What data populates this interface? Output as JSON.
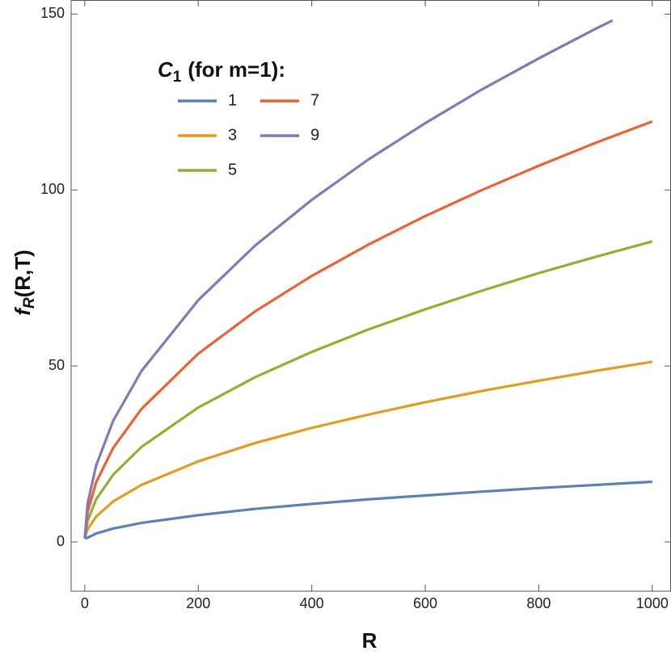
{
  "chart_data": {
    "type": "line",
    "xlabel": "R",
    "ylabel_symbol": "f",
    "ylabel_sub": "R",
    "ylabel_rest": "(R,T)",
    "legend_title_symbol": "C",
    "legend_title_sub": "1",
    "legend_title_rest": "(for m=1):",
    "xlim": [
      -24,
      1033
    ],
    "ylim": [
      -14,
      154
    ],
    "xticks": [
      0,
      200,
      400,
      600,
      800,
      1000
    ],
    "yticks": [
      0,
      50,
      100,
      150
    ],
    "series": [
      {
        "name": "1",
        "color": "#5e81b5",
        "x": [
          0,
          5,
          20,
          50,
          100,
          200,
          300,
          400,
          500,
          600,
          700,
          800,
          900,
          1000
        ],
        "values": [
          1,
          1.2,
          2.4,
          3.8,
          5.4,
          7.6,
          9.4,
          10.8,
          12.1,
          13.2,
          14.3,
          15.3,
          16.2,
          17.1
        ]
      },
      {
        "name": "3",
        "color": "#e19c24",
        "x": [
          0,
          5,
          20,
          50,
          100,
          200,
          300,
          400,
          500,
          600,
          700,
          800,
          900,
          1000
        ],
        "values": [
          1,
          3.6,
          7.2,
          11.5,
          16.2,
          22.9,
          28.1,
          32.4,
          36.2,
          39.7,
          42.9,
          45.8,
          48.6,
          51.2
        ]
      },
      {
        "name": "5",
        "color": "#8fb032",
        "x": [
          0,
          5,
          20,
          50,
          100,
          200,
          300,
          400,
          500,
          600,
          700,
          800,
          900,
          1000
        ],
        "values": [
          1,
          6.0,
          12.1,
          19.1,
          27,
          38.2,
          46.8,
          54,
          60.4,
          66.1,
          71.4,
          76.4,
          81,
          85.4
        ]
      },
      {
        "name": "7",
        "color": "#eb6235",
        "x": [
          0,
          5,
          20,
          50,
          100,
          200,
          300,
          400,
          500,
          600,
          700,
          800,
          900,
          1000
        ],
        "values": [
          1,
          8.5,
          16.9,
          26.7,
          37.8,
          53.5,
          65.5,
          75.6,
          84.5,
          92.6,
          100,
          106.9,
          113.4,
          119.5
        ]
      },
      {
        "name": "9",
        "color": "#8778b3",
        "x": [
          0,
          5,
          20,
          50,
          100,
          200,
          300,
          400,
          500,
          600,
          700,
          800,
          900,
          930
        ],
        "values": [
          1,
          10.9,
          21.7,
          34.4,
          48.6,
          68.7,
          84.2,
          97.2,
          108.7,
          119.0,
          128.6,
          137.4,
          145.8,
          148.2
        ]
      }
    ]
  }
}
